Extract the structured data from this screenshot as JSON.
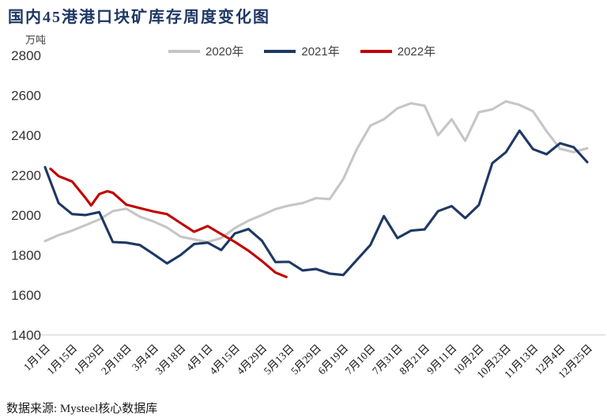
{
  "title": "国内45港港口块矿库存周度变化图",
  "unit_label": "万吨",
  "source_note": "数据来源: Mysteel核心数据库",
  "colors": {
    "title": "#1f3864",
    "series_2020": "#c6c6c6",
    "series_2021": "#1f3864",
    "series_2022": "#c00000",
    "baseline": "#d9d9d9",
    "axis_text": "#333333"
  },
  "legend": [
    {
      "label": "2020年",
      "color": "#c6c6c6"
    },
    {
      "label": "2021年",
      "color": "#1f3864"
    },
    {
      "label": "2022年",
      "color": "#c00000"
    }
  ],
  "chart_data": {
    "type": "line",
    "title": "国内45港港口块矿库存周度变化图",
    "xlabel": "",
    "ylabel": "万吨",
    "ylim": [
      1400,
      2800
    ],
    "yticks": [
      1400,
      1600,
      1800,
      2000,
      2200,
      2400,
      2600,
      2800
    ],
    "grid": "baseline-only",
    "legend_position": "top",
    "x_tick_labels": [
      "1月1日",
      "1月15日",
      "1月29日",
      "2月18日",
      "3月4日",
      "3月18日",
      "4月1日",
      "4月15日",
      "4月29日",
      "5月13日",
      "5月29日",
      "6月19日",
      "7月10日",
      "7月31日",
      "8月21日",
      "9月11日",
      "10月2日",
      "10月23日",
      "11月13日",
      "12月4日",
      "12月25日"
    ],
    "x_ticks_at_even_week_index": true,
    "week_index_range": [
      0,
      40
    ],
    "series": [
      {
        "name": "2020年",
        "color": "#c6c6c6",
        "points": [
          [
            0,
            1870
          ],
          [
            1,
            1900
          ],
          [
            2,
            1922
          ],
          [
            3,
            1950
          ],
          [
            4,
            1978
          ],
          [
            5,
            2020
          ],
          [
            6,
            2032
          ],
          [
            7,
            1992
          ],
          [
            8,
            1968
          ],
          [
            9,
            1938
          ],
          [
            10,
            1892
          ],
          [
            11,
            1878
          ],
          [
            12,
            1865
          ],
          [
            13,
            1885
          ],
          [
            14,
            1935
          ],
          [
            15,
            1972
          ],
          [
            16,
            2000
          ],
          [
            17,
            2030
          ],
          [
            18,
            2048
          ],
          [
            19,
            2060
          ],
          [
            20,
            2085
          ],
          [
            21,
            2080
          ],
          [
            22,
            2180
          ],
          [
            23,
            2330
          ],
          [
            24,
            2448
          ],
          [
            25,
            2480
          ],
          [
            26,
            2535
          ],
          [
            27,
            2560
          ],
          [
            28,
            2548
          ],
          [
            29,
            2400
          ],
          [
            30,
            2480
          ],
          [
            31,
            2372
          ],
          [
            32,
            2515
          ],
          [
            33,
            2530
          ],
          [
            34,
            2570
          ],
          [
            35,
            2552
          ],
          [
            36,
            2520
          ],
          [
            37,
            2420
          ],
          [
            38,
            2332
          ],
          [
            39,
            2315
          ],
          [
            40,
            2335
          ]
        ]
      },
      {
        "name": "2021年",
        "color": "#1f3864",
        "points": [
          [
            0,
            2240
          ],
          [
            1,
            2060
          ],
          [
            2,
            2005
          ],
          [
            3,
            2000
          ],
          [
            4,
            2015
          ],
          [
            5,
            1865
          ],
          [
            6,
            1862
          ],
          [
            7,
            1850
          ],
          [
            8,
            1805
          ],
          [
            9,
            1758
          ],
          [
            10,
            1800
          ],
          [
            11,
            1855
          ],
          [
            12,
            1862
          ],
          [
            13,
            1825
          ],
          [
            14,
            1908
          ],
          [
            15,
            1930
          ],
          [
            16,
            1872
          ],
          [
            17,
            1765
          ],
          [
            18,
            1766
          ],
          [
            19,
            1723
          ],
          [
            20,
            1730
          ],
          [
            21,
            1707
          ],
          [
            22,
            1700
          ],
          [
            23,
            1775
          ],
          [
            24,
            1850
          ],
          [
            25,
            1995
          ],
          [
            26,
            1885
          ],
          [
            27,
            1922
          ],
          [
            28,
            1928
          ],
          [
            29,
            2020
          ],
          [
            30,
            2045
          ],
          [
            31,
            1985
          ],
          [
            32,
            2050
          ],
          [
            33,
            2260
          ],
          [
            34,
            2315
          ],
          [
            35,
            2423
          ],
          [
            36,
            2330
          ],
          [
            37,
            2305
          ],
          [
            38,
            2360
          ],
          [
            39,
            2340
          ],
          [
            40,
            2265
          ]
        ]
      },
      {
        "name": "2022年",
        "color": "#c00000",
        "points": [
          [
            0.4,
            2232
          ],
          [
            1,
            2195
          ],
          [
            2,
            2168
          ],
          [
            3,
            2085
          ],
          [
            3.4,
            2048
          ],
          [
            4,
            2105
          ],
          [
            4.6,
            2120
          ],
          [
            5,
            2112
          ],
          [
            6,
            2052
          ],
          [
            7,
            2035
          ],
          [
            8,
            2018
          ],
          [
            9,
            2005
          ],
          [
            10,
            1960
          ],
          [
            11,
            1916
          ],
          [
            12,
            1945
          ],
          [
            13,
            1905
          ],
          [
            14,
            1866
          ],
          [
            15,
            1822
          ],
          [
            16,
            1770
          ],
          [
            17,
            1712
          ],
          [
            17.8,
            1690
          ]
        ]
      }
    ]
  }
}
